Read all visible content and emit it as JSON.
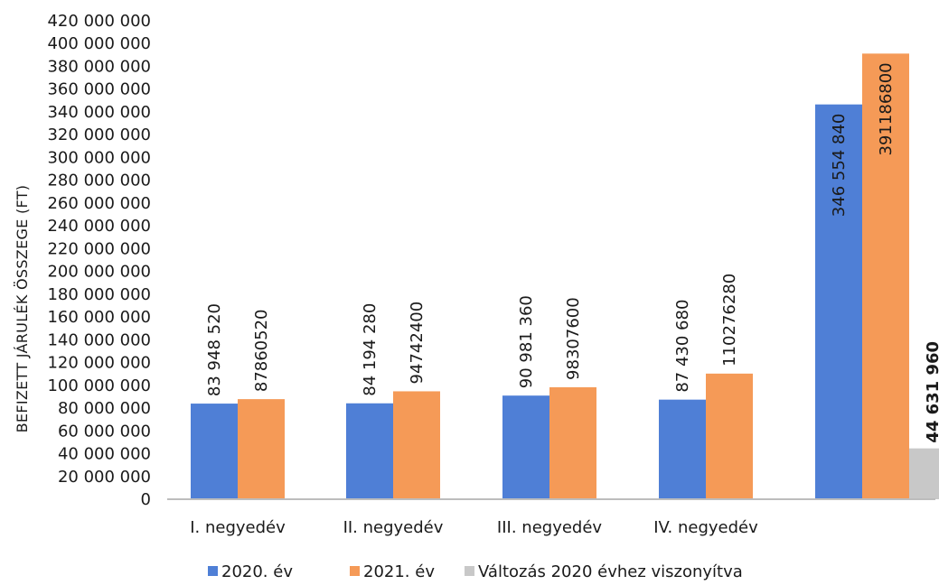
{
  "chart_data": {
    "type": "bar",
    "title": "",
    "xlabel": "",
    "ylabel": "BEFIZETT JÁRULÉK ÖSSZEGE (FT)",
    "ylim": [
      0,
      420000000
    ],
    "y_tick_step": 20000000,
    "grid": false,
    "legend_position": "bottom",
    "categories": [
      "I. negyedév",
      "II. negyedév",
      "III. negyedév",
      "IV. negyedév",
      ""
    ],
    "series": [
      {
        "name": "2020. év",
        "color": "#4f7fd6",
        "values": [
          83948520,
          84194280,
          90981360,
          87430680,
          346554840
        ],
        "labels": [
          "83 948 520",
          "84 194 280",
          "90 981 360",
          "87 430 680",
          "346 554 840"
        ]
      },
      {
        "name": "2021. év",
        "color": "#f59a57",
        "values": [
          87860520,
          94742400,
          98307600,
          110276280,
          391186800
        ],
        "labels": [
          "87860520",
          "94742400",
          "98307600",
          "110276280",
          "391186800"
        ]
      },
      {
        "name": "Változás 2020 évhez viszonyítva",
        "color": "#c8c8c8",
        "values": [
          null,
          null,
          null,
          null,
          44631960
        ],
        "labels": [
          "",
          "",
          "",
          "",
          "44 631 960"
        ]
      }
    ],
    "y_tick_labels": [
      "0",
      "20 000 000",
      "40 000 000",
      "60 000 000",
      "80 000 000",
      "100 000 000",
      "120 000 000",
      "140 000 000",
      "160 000 000",
      "180 000 000",
      "200 000 000",
      "220 000 000",
      "240 000 000",
      "260 000 000",
      "280 000 000",
      "300 000 000",
      "320 000 000",
      "340 000 000",
      "360 000 000",
      "380 000 000",
      "400 000 000",
      "420 000 000"
    ]
  }
}
